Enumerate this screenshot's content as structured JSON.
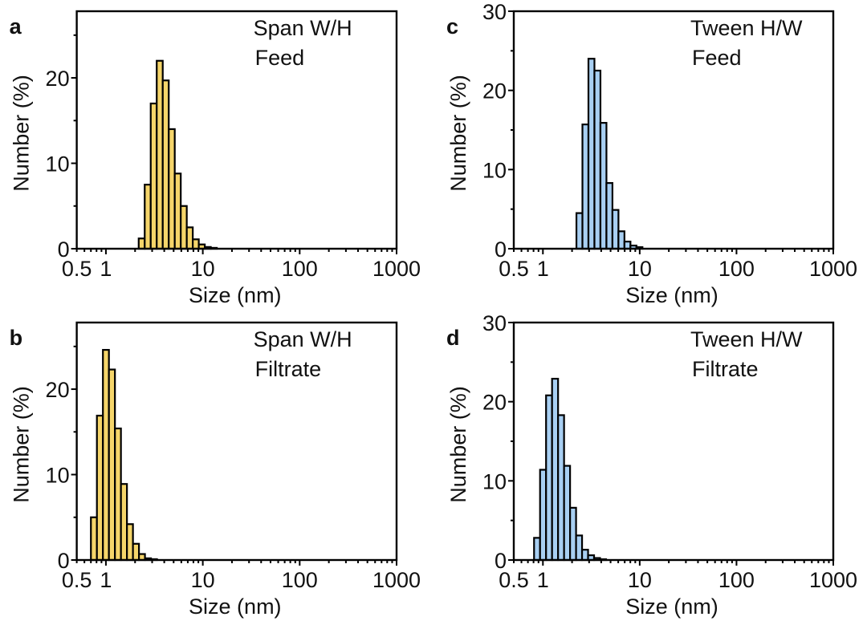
{
  "figure": {
    "description": "Four-panel size distribution histograms (log-scale x axis)"
  },
  "chart_data": [
    {
      "type": "bar",
      "panel": "a",
      "annotation": [
        "Span W/H",
        "Feed"
      ],
      "xlabel": "Size (nm)",
      "ylabel": "Number (%)",
      "xscale": "log",
      "xlim": [
        0.5,
        1000
      ],
      "ylim": [
        0,
        27.8
      ],
      "xticks": [
        0.5,
        1,
        10,
        100,
        1000
      ],
      "xtick_labels": [
        "0.5",
        "1",
        "10",
        "100",
        "1000"
      ],
      "yticks": [
        0,
        10,
        20
      ],
      "ytick_labels": [
        "0",
        "10",
        "20"
      ],
      "bar_color": "#f5d56a",
      "bin_start_nm": 2.18,
      "bin_width_decades": 0.062,
      "values": [
        1.2,
        7.5,
        17.0,
        22.0,
        19.7,
        14.0,
        8.8,
        5.0,
        2.5,
        1.1,
        0.5,
        0.2,
        0.1
      ]
    },
    {
      "type": "bar",
      "panel": "b",
      "annotation": [
        "Span W/H",
        "Filtrate"
      ],
      "xlabel": "Size (nm)",
      "ylabel": "Number (%)",
      "xscale": "log",
      "xlim": [
        0.5,
        1000
      ],
      "ylim": [
        0,
        27.8
      ],
      "xticks": [
        0.5,
        1,
        10,
        100,
        1000
      ],
      "xtick_labels": [
        "0.5",
        "1",
        "10",
        "100",
        "1000"
      ],
      "yticks": [
        0,
        10,
        20
      ],
      "ytick_labels": [
        "0",
        "10",
        "20"
      ],
      "bar_color": "#f5d56a",
      "bin_start_nm": 0.7,
      "bin_width_decades": 0.062,
      "values": [
        5.0,
        16.9,
        24.6,
        22.3,
        15.4,
        8.9,
        4.2,
        1.9,
        0.7,
        0.2,
        0.1
      ]
    },
    {
      "type": "bar",
      "panel": "c",
      "annotation": [
        "Tween H/W",
        "Feed"
      ],
      "xlabel": "Size (nm)",
      "ylabel": "Number (%)",
      "xscale": "log",
      "xlim": [
        0.5,
        1000
      ],
      "ylim": [
        0,
        30
      ],
      "xticks": [
        0.5,
        1,
        10,
        100,
        1000
      ],
      "xtick_labels": [
        "0.5",
        "1",
        "10",
        "100",
        "1000"
      ],
      "yticks": [
        0,
        10,
        20,
        30
      ],
      "ytick_labels": [
        "0",
        "10",
        "20",
        "30"
      ],
      "bar_color": "#a8cff2",
      "bin_start_nm": 2.22,
      "bin_width_decades": 0.062,
      "values": [
        4.5,
        15.7,
        24.0,
        22.5,
        15.9,
        8.3,
        4.9,
        2.2,
        0.9,
        0.4,
        0.2
      ]
    },
    {
      "type": "bar",
      "panel": "d",
      "annotation": [
        "Tween H/W",
        "Filtrate"
      ],
      "xlabel": "Size (nm)",
      "ylabel": "Number (%)",
      "xscale": "log",
      "xlim": [
        0.5,
        1000
      ],
      "ylim": [
        0,
        30
      ],
      "xticks": [
        0.5,
        1,
        10,
        100,
        1000
      ],
      "xtick_labels": [
        "0.5",
        "1",
        "10",
        "100",
        "1000"
      ],
      "yticks": [
        0,
        10,
        20,
        30
      ],
      "ytick_labels": [
        "0",
        "10",
        "20",
        "30"
      ],
      "bar_color": "#a8cff2",
      "bin_start_nm": 0.81,
      "bin_width_decades": 0.062,
      "values": [
        2.8,
        11.4,
        20.8,
        22.9,
        18.3,
        11.9,
        6.6,
        3.1,
        1.3,
        0.6,
        0.25,
        0.1
      ]
    }
  ]
}
